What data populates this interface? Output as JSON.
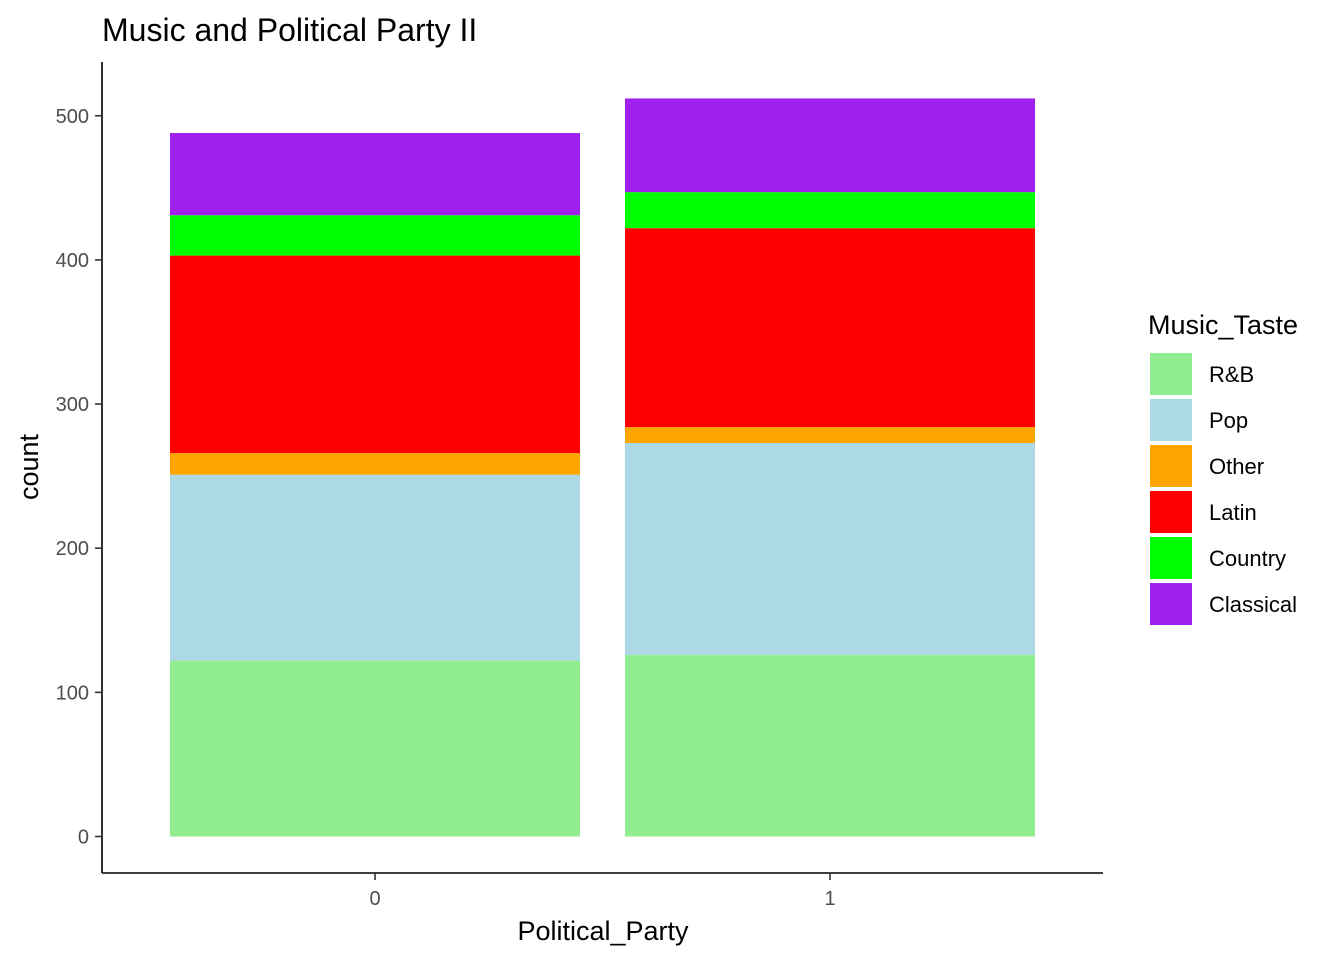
{
  "chart_data": {
    "type": "bar",
    "stacked": true,
    "title": "Music and Political Party II",
    "xlabel": "Political_Party",
    "ylabel": "count",
    "categories": [
      "0",
      "1"
    ],
    "ylim": [
      0,
      512
    ],
    "yticks": [
      0,
      100,
      200,
      300,
      400,
      500
    ],
    "grid": false,
    "legend": {
      "title": "Music_Taste",
      "position": "right"
    },
    "series": [
      {
        "name": "R&B",
        "color": "#90EE90",
        "values": [
          122,
          126
        ]
      },
      {
        "name": "Pop",
        "color": "#ADD8E6",
        "values": [
          129,
          147
        ]
      },
      {
        "name": "Other",
        "color": "#FFA500",
        "values": [
          15,
          11
        ]
      },
      {
        "name": "Latin",
        "color": "#FF0000",
        "values": [
          137,
          138
        ]
      },
      {
        "name": "Country",
        "color": "#00FF00",
        "values": [
          28,
          25
        ]
      },
      {
        "name": "Classical",
        "color": "#A020F0",
        "values": [
          57,
          65
        ]
      }
    ]
  }
}
